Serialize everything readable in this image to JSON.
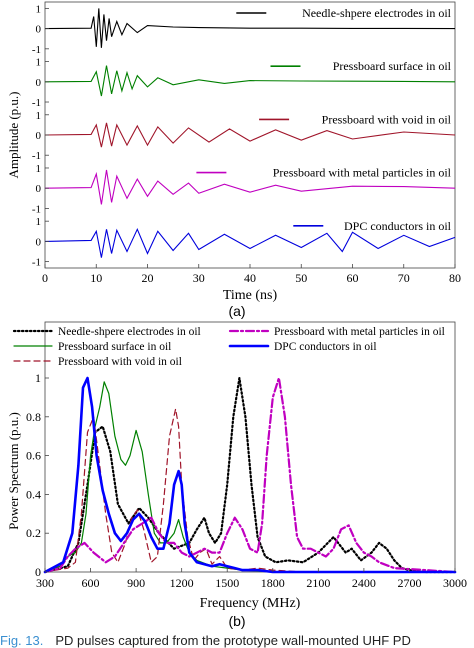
{
  "figure": {
    "caption_label": "Fig. 13.",
    "caption_text": "PD pulses captured from the prototype wall-mounted UHF PD"
  },
  "chart_data": [
    {
      "type": "line",
      "panel_label": "(a)",
      "xlabel": "Time (ns)",
      "ylabel": "Amplitude (p.u.)",
      "xlim": [
        0,
        80
      ],
      "xticks": [
        0,
        10,
        20,
        30,
        40,
        50,
        60,
        70,
        80
      ],
      "yticks_per_trace": [
        -1,
        0,
        1
      ],
      "ylim_per_trace": [
        -1,
        1
      ],
      "grid": false,
      "series": [
        {
          "name": "Needle-shpere electrodes in oil",
          "color": "#000000",
          "x": [
            0,
            9,
            9.5,
            10,
            10.5,
            11,
            11.5,
            12,
            12.5,
            13,
            14,
            15,
            16,
            18,
            20,
            25,
            30,
            40,
            50,
            60,
            70,
            80
          ],
          "y": [
            0,
            0.02,
            0.6,
            -0.9,
            1.0,
            -0.95,
            0.7,
            -0.6,
            0.5,
            -0.4,
            0.35,
            -0.3,
            0.25,
            -0.2,
            0.15,
            0.08,
            0.05,
            0.02,
            0.02,
            0.01,
            0.01,
            0
          ]
        },
        {
          "name": "Pressboard surface in oil",
          "color": "#008000",
          "x": [
            0,
            9,
            10,
            11,
            12,
            13,
            14,
            15,
            16,
            17,
            18,
            20,
            22,
            25,
            30,
            35,
            40,
            50,
            60,
            70,
            80
          ],
          "y": [
            0,
            0.02,
            0.5,
            -0.7,
            0.8,
            -0.6,
            0.55,
            -0.45,
            0.45,
            -0.35,
            0.3,
            -0.25,
            0.2,
            -0.15,
            0.1,
            -0.08,
            0.06,
            0.04,
            0.03,
            0.02,
            0
          ]
        },
        {
          "name": "Pressboard with void in oil",
          "color": "#a0152a",
          "x": [
            0,
            9,
            10,
            11,
            12,
            13,
            14,
            16,
            18,
            20,
            22,
            25,
            28,
            32,
            36,
            40,
            45,
            50,
            55,
            60,
            70,
            80
          ],
          "y": [
            0,
            0.03,
            0.5,
            -0.6,
            0.6,
            -0.55,
            0.5,
            -0.5,
            0.45,
            -0.5,
            0.4,
            -0.4,
            0.35,
            -0.35,
            0.3,
            -0.3,
            0.25,
            -0.25,
            0.22,
            -0.2,
            0.15,
            0
          ]
        },
        {
          "name": "Pressboard with metal particles in oil",
          "color": "#c000c0",
          "x": [
            0,
            9,
            10,
            11,
            12,
            13,
            14,
            16,
            18,
            20,
            22,
            25,
            28,
            30,
            35,
            40,
            45,
            50,
            60,
            70,
            80
          ],
          "y": [
            0,
            0.03,
            0.7,
            -0.8,
            0.9,
            -0.7,
            0.6,
            -0.5,
            0.45,
            -0.4,
            0.35,
            -0.3,
            0.25,
            -0.25,
            0.2,
            -0.2,
            0.15,
            -0.15,
            0.1,
            0.08,
            0
          ]
        },
        {
          "name": "DPC conductors in oil",
          "color": "#0000dd",
          "x": [
            0,
            9,
            10,
            11,
            12,
            13,
            14,
            16,
            18,
            20,
            22,
            25,
            28,
            30,
            35,
            40,
            45,
            50,
            55,
            58,
            60,
            65,
            70,
            75,
            80
          ],
          "y": [
            0,
            0.05,
            0.5,
            -0.8,
            0.6,
            -0.6,
            0.55,
            -0.5,
            0.6,
            -0.6,
            0.5,
            -0.45,
            0.4,
            -0.4,
            0.35,
            -0.35,
            0.3,
            -0.3,
            0.4,
            -0.5,
            0.45,
            -0.35,
            0.3,
            -0.25,
            0.2
          ]
        }
      ]
    },
    {
      "type": "line",
      "panel_label": "(b)",
      "xlabel": "Frequency (MHz)",
      "ylabel": "Power Spectrum (p.u.)",
      "xlim": [
        300,
        3000
      ],
      "ylim": [
        0,
        1
      ],
      "xticks": [
        300,
        600,
        900,
        1200,
        1500,
        1800,
        2100,
        2400,
        2700,
        3000
      ],
      "yticks": [
        0,
        0.2,
        0.4,
        0.6,
        0.8,
        1
      ],
      "ytick_labels": [
        "0",
        "0.2",
        "0.4",
        "0.6",
        "0.8",
        "1"
      ],
      "grid": false,
      "legend_position": "top",
      "series": [
        {
          "name": "Needle-shpere electrodes in oil",
          "color": "#000000",
          "style": "dotted",
          "width": 2.2,
          "x": [
            300,
            450,
            520,
            580,
            630,
            680,
            730,
            780,
            850,
            920,
            980,
            1050,
            1150,
            1250,
            1300,
            1350,
            1380,
            1420,
            1460,
            1500,
            1540,
            1580,
            1620,
            1660,
            1700,
            1750,
            1820,
            1900,
            2000,
            2100,
            2200,
            2240,
            2280,
            2320,
            2380,
            2450,
            2500,
            2550,
            2600,
            2650,
            2700,
            2800,
            3000
          ],
          "y": [
            0,
            0.03,
            0.15,
            0.45,
            0.72,
            0.75,
            0.62,
            0.35,
            0.25,
            0.33,
            0.28,
            0.2,
            0.12,
            0.15,
            0.22,
            0.28,
            0.2,
            0.15,
            0.2,
            0.45,
            0.8,
            1.0,
            0.8,
            0.45,
            0.18,
            0.08,
            0.05,
            0.06,
            0.05,
            0.1,
            0.18,
            0.14,
            0.1,
            0.12,
            0.06,
            0.1,
            0.15,
            0.12,
            0.06,
            0.02,
            0.01,
            0,
            0
          ]
        },
        {
          "name": "Pressboard surface in oil",
          "color": "#008000",
          "style": "solid",
          "width": 1.2,
          "x": [
            300,
            400,
            450,
            500,
            540,
            570,
            600,
            630,
            660,
            690,
            720,
            760,
            800,
            830,
            860,
            900,
            940,
            980,
            1020,
            1060,
            1100,
            1150,
            1180,
            1210,
            1250,
            1300,
            1400,
            1500,
            1600,
            1800,
            2000,
            3000
          ],
          "y": [
            0,
            0.03,
            0.08,
            0.1,
            0.15,
            0.3,
            0.6,
            0.75,
            0.85,
            0.98,
            0.92,
            0.7,
            0.58,
            0.55,
            0.6,
            0.73,
            0.62,
            0.4,
            0.2,
            0.15,
            0.15,
            0.2,
            0.27,
            0.18,
            0.1,
            0.06,
            0.03,
            0.02,
            0.01,
            0,
            0,
            0
          ]
        },
        {
          "name": "Pressboard with void in oil",
          "color": "#a0152a",
          "style": "dashed",
          "width": 1.2,
          "x": [
            300,
            450,
            500,
            540,
            580,
            620,
            660,
            700,
            740,
            780,
            830,
            870,
            910,
            950,
            1000,
            1040,
            1080,
            1120,
            1160,
            1180,
            1200,
            1240,
            1280,
            1320,
            1360,
            1400,
            1450,
            1500,
            1600,
            1700,
            1800,
            2000,
            3000
          ],
          "y": [
            0,
            0.02,
            0.05,
            0.3,
            0.72,
            0.8,
            0.55,
            0.3,
            0.1,
            0.05,
            0.15,
            0.28,
            0.32,
            0.22,
            0.05,
            0.08,
            0.35,
            0.7,
            0.84,
            0.75,
            0.45,
            0.18,
            0.06,
            0.1,
            0.12,
            0.04,
            0.08,
            0.02,
            0.01,
            0.02,
            0.01,
            0,
            0
          ]
        },
        {
          "name": "Pressboard with metal particles in oil",
          "color": "#c000c0",
          "style": "dashdot",
          "width": 2.2,
          "x": [
            300,
            400,
            450,
            500,
            560,
            620,
            700,
            760,
            820,
            880,
            940,
            1000,
            1050,
            1100,
            1150,
            1200,
            1250,
            1300,
            1350,
            1400,
            1450,
            1500,
            1550,
            1600,
            1650,
            1700,
            1730,
            1760,
            1800,
            1840,
            1880,
            1920,
            1960,
            2000,
            2050,
            2100,
            2150,
            2200,
            2250,
            2300,
            2350,
            2400,
            2450,
            2500,
            2600,
            3000
          ],
          "y": [
            0,
            0.02,
            0.08,
            0.12,
            0.15,
            0.1,
            0.05,
            0.08,
            0.15,
            0.22,
            0.25,
            0.28,
            0.2,
            0.15,
            0.15,
            0.1,
            0.08,
            0.1,
            0.12,
            0.1,
            0.1,
            0.2,
            0.28,
            0.22,
            0.12,
            0.1,
            0.25,
            0.6,
            0.9,
            1.0,
            0.8,
            0.45,
            0.18,
            0.12,
            0.12,
            0.1,
            0.08,
            0.12,
            0.22,
            0.24,
            0.15,
            0.1,
            0.08,
            0.05,
            0.02,
            0
          ]
        },
        {
          "name": "DPC conductors in oil",
          "color": "#0000ff",
          "style": "solid",
          "width": 2.6,
          "x": [
            300,
            420,
            480,
            520,
            550,
            580,
            610,
            640,
            680,
            720,
            760,
            800,
            840,
            880,
            920,
            960,
            1000,
            1040,
            1080,
            1120,
            1150,
            1180,
            1200,
            1220,
            1250,
            1300,
            1350,
            1400,
            1450,
            1500,
            1550,
            1600,
            1700,
            1800,
            3000
          ],
          "y": [
            0,
            0.05,
            0.2,
            0.55,
            0.95,
            1.0,
            0.85,
            0.6,
            0.42,
            0.3,
            0.2,
            0.16,
            0.2,
            0.27,
            0.3,
            0.26,
            0.18,
            0.12,
            0.12,
            0.25,
            0.45,
            0.52,
            0.45,
            0.25,
            0.1,
            0.05,
            0.04,
            0.03,
            0.04,
            0.03,
            0.02,
            0.01,
            0.01,
            0,
            0
          ]
        }
      ]
    }
  ]
}
